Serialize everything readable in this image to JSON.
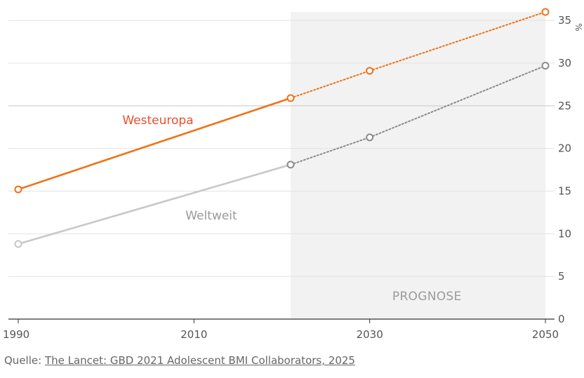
{
  "chart_data": {
    "type": "line",
    "x_ticks": [
      "1990",
      "2010",
      "2030",
      "2050"
    ],
    "y_ticks": [
      0,
      5,
      10,
      15,
      20,
      25,
      30,
      35
    ],
    "y_unit": "%",
    "ylim": [
      0,
      36
    ],
    "xlim": [
      1990,
      2050
    ],
    "forecast_start": 2021,
    "forecast_label": "PROGNOSE",
    "grid": "horizontal",
    "y_axis_side": "right",
    "series": [
      {
        "name": "Westeuropa",
        "color": "#ee7218",
        "label_color": "#e8502a",
        "points": [
          {
            "x": 1990,
            "y": 15.2,
            "projected": false
          },
          {
            "x": 2021,
            "y": 25.9,
            "projected": false
          },
          {
            "x": 2030,
            "y": 29.1,
            "projected": true
          },
          {
            "x": 2050,
            "y": 36.0,
            "projected": true
          }
        ]
      },
      {
        "name": "Weltweit",
        "color": "#c8c8c8",
        "projected_color": "#8a8a8a",
        "label_color": "#9a9a9a",
        "points": [
          {
            "x": 1990,
            "y": 8.8,
            "projected": false
          },
          {
            "x": 2021,
            "y": 18.1,
            "projected": false
          },
          {
            "x": 2030,
            "y": 21.3,
            "projected": true
          },
          {
            "x": 2050,
            "y": 29.7,
            "projected": true
          }
        ]
      }
    ]
  },
  "source": {
    "prefix": "Quelle: ",
    "link_text": "The Lancet: GBD 2021 Adolescent BMI Collaborators, 2025"
  }
}
